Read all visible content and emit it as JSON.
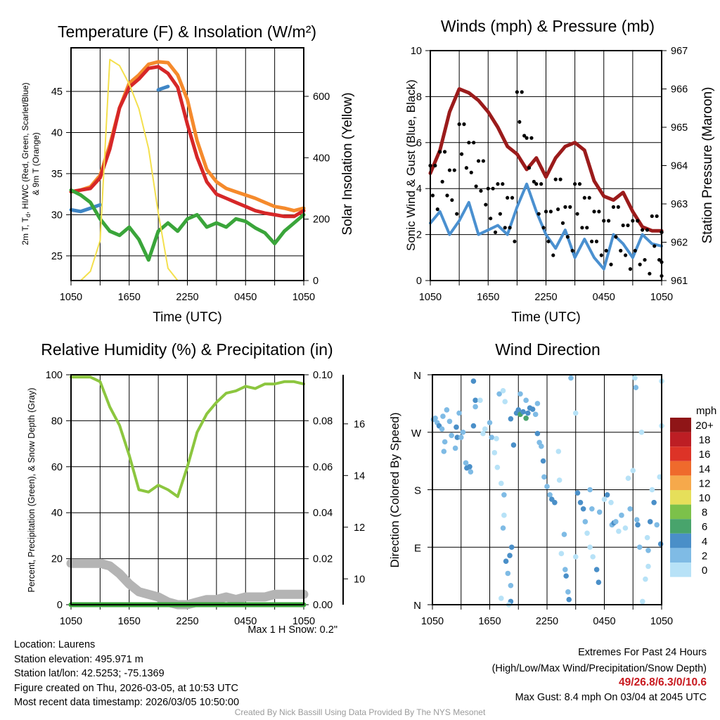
{
  "chart_data": [
    {
      "type": "line",
      "title": "Temperature (F) & Insolation (W/m²)",
      "xlabel": "Time (UTC)",
      "ylabel_parts": [
        "2m T, T",
        "d",
        ", HI/WC (Red, Green, Scarlet/Blue)"
      ],
      "ylabel_line2": "& 9m T (Orange)",
      "ylabel_right": "Solar Insolation (Yellow)",
      "x_ticks": [
        "1050",
        "1650",
        "2250",
        "0450",
        "1050"
      ],
      "xlim_hours": [
        0,
        24
      ],
      "ylim": [
        22,
        50.3
      ],
      "y_ticks": [
        25,
        30,
        35,
        40,
        45
      ],
      "ylim_right": [
        0,
        758
      ],
      "y_ticks_right": [
        0,
        200,
        400,
        600
      ],
      "series": [
        {
          "name": "9m T",
          "color": "#f58a2c",
          "axis": "left",
          "values": [
            32.8,
            33,
            33.4,
            34.8,
            38.5,
            43,
            46,
            47,
            48.3,
            48.6,
            48.5,
            47,
            44,
            39,
            35.5,
            34,
            33.2,
            32.8,
            32.4,
            32,
            31.5,
            31,
            30.8,
            30.5,
            30.8
          ]
        },
        {
          "name": "2m T",
          "color": "#d62728",
          "axis": "left",
          "values": [
            32.8,
            33,
            33.2,
            34.5,
            38,
            43,
            45.5,
            46.5,
            47.8,
            48,
            47.2,
            45.5,
            41,
            37,
            34,
            32.5,
            32,
            31.5,
            31,
            30.5,
            30.2,
            30,
            29.8,
            29.8,
            30.5
          ]
        },
        {
          "name": "HI/WC",
          "color": "#3f86c6",
          "axis": "left",
          "values": [
            30.6,
            30.4,
            30.8,
            31.2,
            null,
            null,
            null,
            null,
            null,
            45.2,
            45.6,
            null,
            null,
            null,
            null,
            null,
            null,
            null,
            30.8,
            null,
            null,
            null,
            null,
            null,
            null
          ]
        },
        {
          "name": "2m Td",
          "color": "#3aa53a",
          "axis": "left",
          "values": [
            33,
            32.4,
            31.5,
            29.5,
            28,
            27.5,
            28.5,
            27,
            24.5,
            28,
            29,
            28,
            29.5,
            30,
            28.5,
            29,
            28.5,
            29.5,
            29.2,
            28.4,
            27.8,
            26.5,
            28,
            29,
            30
          ]
        },
        {
          "name": "Solar",
          "color": "#f4e04d",
          "axis": "right",
          "values": [
            0,
            0,
            30,
            130,
            720,
            700,
            640,
            560,
            430,
            220,
            40,
            0,
            0,
            0,
            0,
            0,
            0,
            0,
            0,
            0,
            0,
            0,
            0,
            0,
            0
          ]
        }
      ]
    },
    {
      "type": "line",
      "title": "Winds (mph) & Pressure (mb)",
      "xlabel": "Time (UTC)",
      "ylabel": "Sonic Wind & Gust (Blue, Black)",
      "ylabel_right": "Station Pressure (Maroon)",
      "x_ticks": [
        "1050",
        "1650",
        "2250",
        "0450",
        "1050"
      ],
      "xlim_hours": [
        0,
        24
      ],
      "ylim": [
        0,
        10
      ],
      "y_ticks": [
        0,
        2,
        4,
        6,
        8,
        10
      ],
      "ylim_right": [
        961,
        967
      ],
      "y_ticks_right": [
        961,
        962,
        963,
        964,
        965,
        966,
        967
      ],
      "series": [
        {
          "name": "Sonic Wind",
          "color": "#4a90d0",
          "axis": "left",
          "values": [
            2.5,
            3,
            2,
            2.6,
            3.4,
            2,
            2.2,
            2.4,
            2,
            3.2,
            4.2,
            3,
            2,
            1.4,
            2.2,
            1,
            1.8,
            1,
            0.5,
            2,
            1.6,
            1,
            2,
            1.6,
            1.5
          ]
        },
        {
          "name": "Pressure",
          "color": "#9b1b1b",
          "axis": "right",
          "values": [
            963.8,
            964.4,
            965.4,
            966,
            965.9,
            965.7,
            965.4,
            965,
            964.5,
            964.3,
            963.9,
            964.2,
            963.7,
            964.2,
            964.5,
            964.6,
            964.4,
            963.6,
            963.2,
            963.1,
            963.3,
            962.8,
            962.4,
            962.3,
            962.3
          ]
        },
        {
          "name": "Gust",
          "color": "#000000",
          "axis": "left",
          "type": "scatter",
          "values": [
            5,
            5.6,
            4.8,
            6.8,
            6,
            5.2,
            4,
            4.2,
            3.6,
            8.2,
            6.2,
            4.2,
            3,
            4.4,
            3.2,
            4.2,
            3.6,
            3,
            2.6,
            3.2,
            2.4,
            2.6,
            2.2,
            2.8,
            2.1
          ]
        }
      ]
    },
    {
      "type": "line",
      "title": "Relative Humidity (%) & Precipitation (in)",
      "ylabel": "Percent, Precipitation (Green), & Snow Depth (Gray)",
      "x_ticks": [
        "1050",
        "1650",
        "2250",
        "0450",
        "1050"
      ],
      "xlim_hours": [
        0,
        24
      ],
      "ylim": [
        0,
        100
      ],
      "y_ticks": [
        0,
        20,
        40,
        60,
        80,
        100
      ],
      "ylim_right": [
        0,
        0.1
      ],
      "y_ticks_right": [
        "0.00",
        "0.02",
        "0.04",
        "0.06",
        "0.08",
        "0.10"
      ],
      "ylim_right2": [
        9.0,
        17.9
      ],
      "y_ticks_right2": [
        10,
        12,
        14,
        16
      ],
      "annotation": "Max 1 H Snow: 0.2\"",
      "series": [
        {
          "name": "RH",
          "color": "#8cc63f",
          "axis": "left",
          "values": [
            99,
            99,
            99,
            97,
            86,
            78,
            65,
            50,
            49,
            52,
            50,
            47,
            60,
            75,
            83,
            88,
            92,
            93,
            95,
            94,
            96,
            96,
            97,
            97,
            96
          ]
        },
        {
          "name": "Snow Depth",
          "color": "#b4b4b4",
          "axis": "right2",
          "values": [
            10.6,
            10.6,
            10.6,
            10.6,
            10.5,
            10.2,
            9.8,
            9.5,
            9.4,
            9.3,
            9.1,
            9.0,
            9.0,
            9.1,
            9.2,
            9.2,
            9.3,
            9.2,
            9.3,
            9.3,
            9.3,
            9.4,
            9.4,
            9.4,
            9.4
          ]
        },
        {
          "name": "Precipitation",
          "color": "#3aa53a",
          "axis": "right",
          "values": [
            0,
            0,
            0,
            0,
            0,
            0,
            0,
            0,
            0,
            0,
            0,
            0,
            0,
            0,
            0,
            0,
            0,
            0,
            0,
            0,
            0,
            0,
            0,
            0,
            0
          ]
        }
      ]
    },
    {
      "type": "scatter",
      "title": "Wind Direction",
      "ylabel": "Direction (Colored By Speed)",
      "x_ticks": [
        "1050",
        "1650",
        "2250",
        "0450",
        "1050"
      ],
      "xlim_hours": [
        0,
        24
      ],
      "y_ticks": [
        "N",
        "E",
        "S",
        "W",
        "N"
      ],
      "ylim_deg": [
        0,
        360
      ],
      "legend_title": "mph",
      "legend_labels": [
        "20+",
        "18",
        "16",
        "14",
        "12",
        "10",
        "8",
        "6",
        "4",
        "2",
        "0"
      ],
      "legend_colors": [
        "#8f1517",
        "#bd1e24",
        "#dd3327",
        "#ef6a2c",
        "#f6a94b",
        "#e6df5a",
        "#7cc14a",
        "#48a46c",
        "#4a8fc8",
        "#7fbbe5",
        "#b7e2f7"
      ],
      "points": [
        [
          0.1,
          290,
          2
        ],
        [
          0.3,
          292,
          2
        ],
        [
          0.5,
          285,
          2
        ],
        [
          0.7,
          280,
          4
        ],
        [
          1,
          275,
          2
        ],
        [
          1.1,
          295,
          2
        ],
        [
          1.5,
          305,
          2
        ],
        [
          1.8,
          287,
          2
        ],
        [
          2,
          265,
          2
        ],
        [
          2.5,
          278,
          4
        ],
        [
          2.6,
          262,
          4
        ],
        [
          2.8,
          300,
          2
        ],
        [
          3,
          262,
          2
        ],
        [
          3.2,
          270,
          2
        ],
        [
          1.3,
          255,
          2
        ],
        [
          1.2,
          240,
          2
        ],
        [
          2.4,
          245,
          2
        ],
        [
          3.5,
          222,
          2
        ],
        [
          3.6,
          214,
          4
        ],
        [
          3.9,
          216,
          4
        ],
        [
          4,
          208,
          2
        ],
        [
          4.3,
          280,
          4
        ],
        [
          4.5,
          320,
          4
        ],
        [
          4.5,
          310,
          2
        ],
        [
          4.3,
          350,
          4
        ],
        [
          5,
          320,
          0
        ],
        [
          5.5,
          275,
          0
        ],
        [
          5.3,
          268,
          0
        ],
        [
          6,
          285,
          2
        ],
        [
          6.2,
          262,
          2
        ],
        [
          6.5,
          238,
          0
        ],
        [
          6.7,
          260,
          0
        ],
        [
          6.8,
          215,
          0
        ],
        [
          7,
          330,
          2
        ],
        [
          7.4,
          335,
          0
        ],
        [
          7.6,
          318,
          0
        ],
        [
          7.2,
          190,
          0
        ],
        [
          7.5,
          172,
          2
        ],
        [
          7.5,
          140,
          0
        ],
        [
          7.4,
          120,
          2
        ],
        [
          8.3,
          90,
          4
        ],
        [
          7.7,
          68,
          4
        ],
        [
          8.1,
          77,
          4
        ],
        [
          7.9,
          49,
          2
        ],
        [
          8.2,
          30,
          2
        ],
        [
          8.2,
          5,
          4
        ],
        [
          7.2,
          10,
          0
        ],
        [
          8.0,
          0,
          0
        ],
        [
          8.5,
          250,
          4
        ],
        [
          8.2,
          291,
          4
        ],
        [
          8.8,
          300,
          4
        ],
        [
          9,
          305,
          4
        ],
        [
          9.2,
          298,
          6
        ],
        [
          9.5,
          302,
          4
        ],
        [
          9.8,
          292,
          6
        ],
        [
          10,
          300,
          4
        ],
        [
          10.2,
          308,
          4
        ],
        [
          10.5,
          306,
          4
        ],
        [
          10.8,
          298,
          2
        ],
        [
          11,
          315,
          2
        ],
        [
          11,
          268,
          4
        ],
        [
          11.2,
          254,
          2
        ],
        [
          11.4,
          248,
          2
        ],
        [
          9.2,
          330,
          2
        ],
        [
          9.8,
          320,
          2
        ],
        [
          11.6,
          225,
          4
        ],
        [
          11.7,
          200,
          2
        ],
        [
          12,
          185,
          2
        ],
        [
          12.3,
          172,
          2
        ],
        [
          12.5,
          165,
          4
        ],
        [
          12.8,
          160,
          4
        ],
        [
          13.2,
          240,
          0
        ],
        [
          13.3,
          195,
          0
        ],
        [
          13.5,
          80,
          0
        ],
        [
          13.9,
          55,
          2
        ],
        [
          14,
          45,
          4
        ],
        [
          14.2,
          20,
          2
        ],
        [
          14.3,
          8,
          4
        ],
        [
          13.8,
          110,
          2
        ],
        [
          14.5,
          355,
          2
        ],
        [
          15,
          300,
          0
        ],
        [
          15,
          75,
          0
        ],
        [
          15.2,
          175,
          4
        ],
        [
          15.5,
          160,
          4
        ],
        [
          15.8,
          150,
          4
        ],
        [
          16,
          130,
          2
        ],
        [
          16.2,
          112,
          0
        ],
        [
          16.5,
          90,
          0
        ],
        [
          16.8,
          75,
          0
        ],
        [
          16.5,
          180,
          2
        ],
        [
          17.2,
          55,
          4
        ],
        [
          17.4,
          35,
          4
        ],
        [
          16.7,
          150,
          2
        ],
        [
          17.5,
          145,
          2
        ],
        [
          18,
          165,
          0
        ],
        [
          18.3,
          172,
          4
        ],
        [
          18.7,
          160,
          0
        ],
        [
          18.8,
          125,
          2
        ],
        [
          19,
          128,
          4
        ],
        [
          19.2,
          130,
          2
        ],
        [
          19.5,
          115,
          0
        ],
        [
          19.8,
          140,
          2
        ],
        [
          20.2,
          120,
          0
        ],
        [
          20.5,
          198,
          0
        ],
        [
          20.7,
          150,
          2
        ],
        [
          21,
          210,
          0
        ],
        [
          21.4,
          133,
          2
        ],
        [
          21.5,
          125,
          4
        ],
        [
          21.7,
          90,
          2
        ],
        [
          21.9,
          270,
          0
        ],
        [
          21.2,
          355,
          0
        ],
        [
          21.3,
          340,
          2
        ],
        [
          22.5,
          105,
          0
        ],
        [
          22.3,
          40,
          0
        ],
        [
          22.6,
          85,
          2
        ],
        [
          22.8,
          130,
          4
        ],
        [
          23,
          180,
          0
        ],
        [
          23.2,
          160,
          4
        ],
        [
          23.5,
          125,
          2
        ],
        [
          23.8,
          200,
          0
        ],
        [
          23.9,
          95,
          4
        ],
        [
          24,
          350,
          0
        ],
        [
          24,
          280,
          0
        ],
        [
          22,
          5,
          0
        ],
        [
          22.6,
          60,
          0
        ]
      ]
    }
  ],
  "station_info": {
    "location": "Location: Laurens",
    "elevation": "Station elevation: 495.971 m",
    "latlon": "Station lat/lon: 42.5253; -75.1369",
    "created": "Figure created on Thu, 2026-03-05, at 10:53 UTC",
    "recent": "Most recent data timestamp: 2026/03/05 10:50:00"
  },
  "extremes": {
    "title": "Extremes For Past 24 Hours",
    "subtitle": "(High/Low/Max Wind/Precipitation/Snow Depth)",
    "values": "49/26.8/6.3/0/10.6",
    "max_gust": "Max Gust: 8.4 mph On 03/04 at 2045 UTC"
  },
  "credit": "Created By Nick Bassill Using Data Provided By The NYS Mesonet"
}
